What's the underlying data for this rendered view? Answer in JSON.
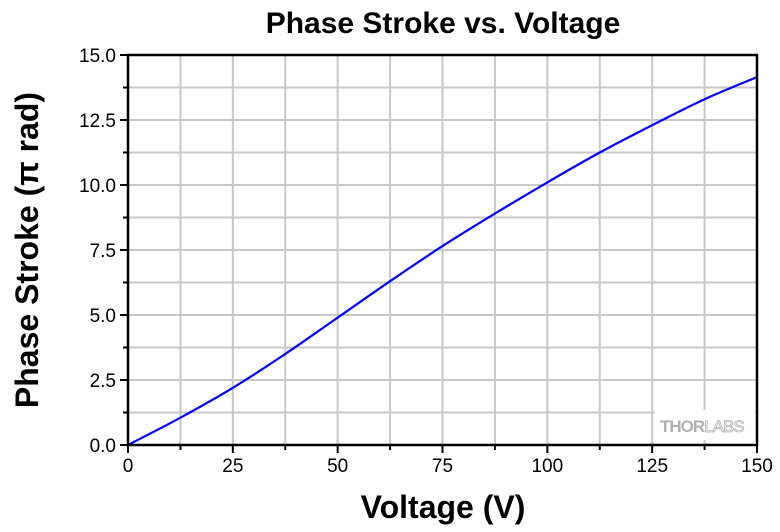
{
  "chart_data": {
    "type": "line",
    "title": "Phase Stroke vs. Voltage",
    "xlabel": "Voltage (V)",
    "ylabel": "Phase Stroke (π rad)",
    "xlim": [
      0,
      150
    ],
    "ylim": [
      0,
      15
    ],
    "xticks": [
      0,
      25,
      50,
      75,
      100,
      125,
      150
    ],
    "yticks": [
      "0.0",
      "2.5",
      "5.0",
      "7.5",
      "10.0",
      "12.5",
      "15.0"
    ],
    "grid": true,
    "colors": {
      "line": "#0000ff",
      "grid": "#c8c8c8"
    },
    "watermark": "THORLABS",
    "series": [
      {
        "x": [
          0,
          12.5,
          25,
          37.5,
          50,
          62.5,
          75,
          87.5,
          100,
          112.5,
          125,
          137.5,
          150
        ],
        "y": [
          0,
          1.05,
          2.2,
          3.5,
          4.9,
          6.3,
          7.65,
          8.9,
          10.1,
          11.25,
          12.3,
          13.3,
          14.15
        ]
      }
    ]
  }
}
